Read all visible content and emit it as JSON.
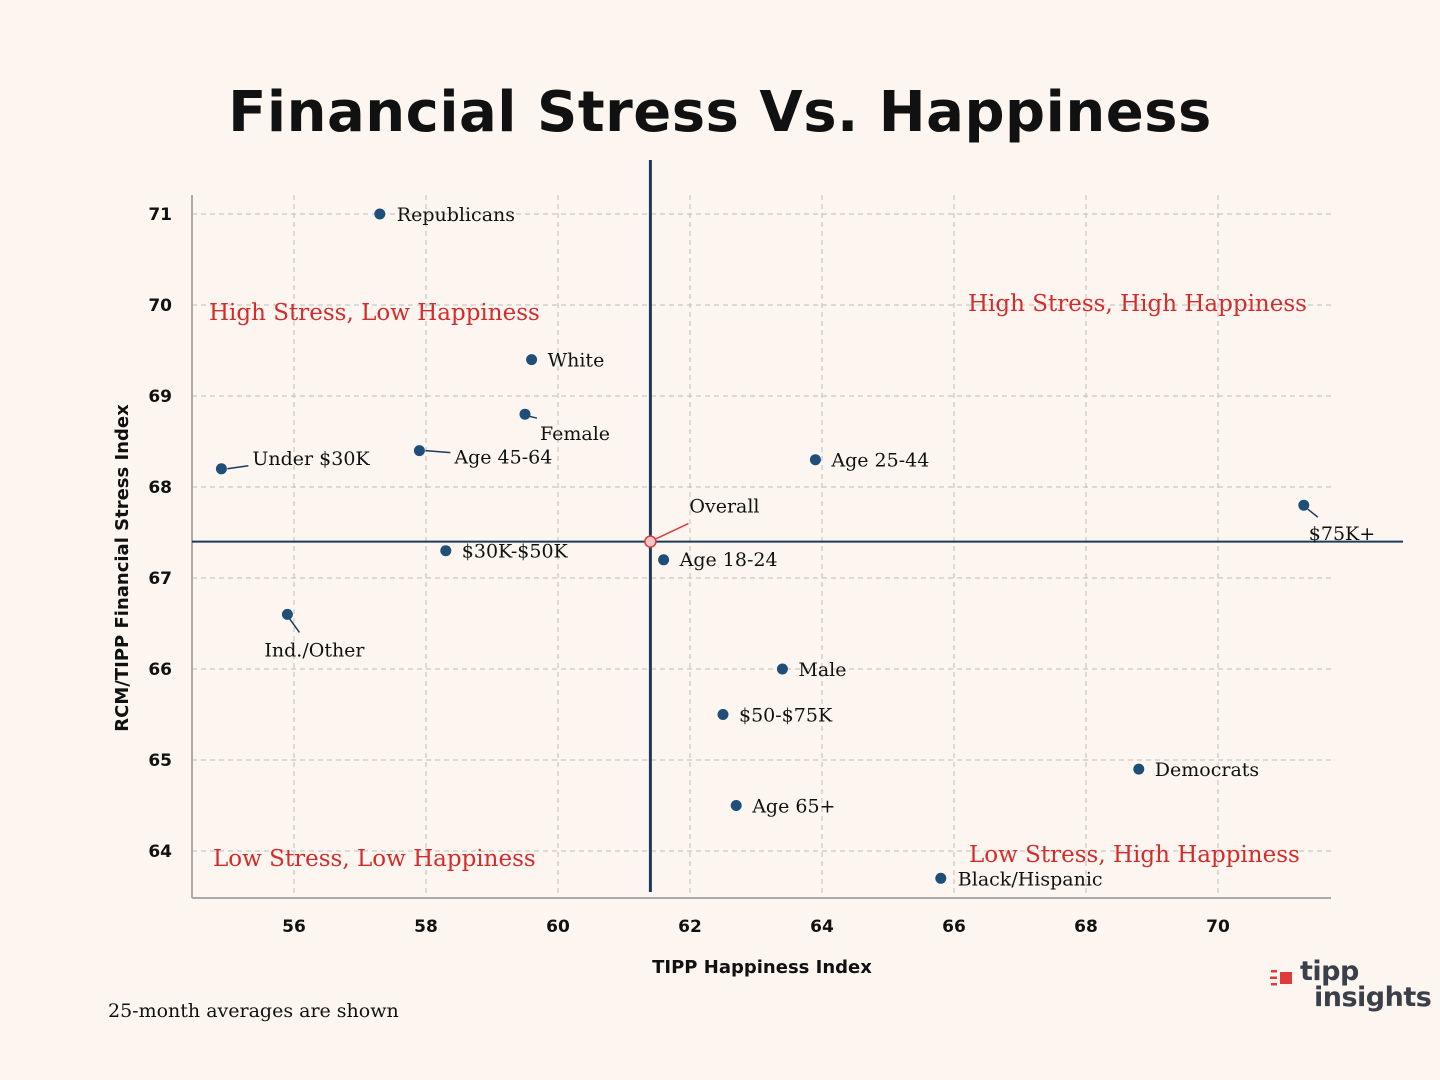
{
  "chart_data": {
    "type": "scatter",
    "title": "Financial Stress Vs. Happiness",
    "xlabel": "TIPP Happiness Index",
    "ylabel": "RCM/TIPP Financial Stress Index",
    "xlim": [
      54.5,
      71.7
    ],
    "ylim": [
      63.5,
      71.2
    ],
    "xticks": [
      56,
      58,
      60,
      62,
      64,
      66,
      68,
      70
    ],
    "yticks": [
      64,
      65,
      66,
      67,
      68,
      69,
      70,
      71
    ],
    "grid": true,
    "reference_lines": {
      "x": 61.4,
      "y": 67.4
    },
    "point_color": "#1f4e79",
    "highlight_color": "#e03a3a",
    "quadrant_label_color": "#d42b2b",
    "points": [
      {
        "label": "Republicans",
        "x": 57.3,
        "y": 71.0
      },
      {
        "label": "White",
        "x": 59.6,
        "y": 69.4
      },
      {
        "label": "Female",
        "x": 59.5,
        "y": 68.8
      },
      {
        "label": "Under $30K",
        "x": 54.9,
        "y": 68.2
      },
      {
        "label": "Age 45-64",
        "x": 57.9,
        "y": 68.4
      },
      {
        "label": "Age 25-44",
        "x": 63.9,
        "y": 68.3
      },
      {
        "label": "$75K+",
        "x": 71.3,
        "y": 67.8
      },
      {
        "label": "Overall",
        "x": 61.4,
        "y": 67.4,
        "highlight": true
      },
      {
        "label": "$30K-$50K",
        "x": 58.3,
        "y": 67.3
      },
      {
        "label": "Age 18-24",
        "x": 61.6,
        "y": 67.2
      },
      {
        "label": "Ind./Other",
        "x": 55.9,
        "y": 66.6
      },
      {
        "label": "Male",
        "x": 63.4,
        "y": 66.0
      },
      {
        "label": "$50-$75K",
        "x": 62.5,
        "y": 65.5
      },
      {
        "label": "Democrats",
        "x": 68.8,
        "y": 64.9
      },
      {
        "label": "Age 65+",
        "x": 62.7,
        "y": 64.5
      },
      {
        "label": "Black/Hispanic",
        "x": 65.8,
        "y": 63.7
      }
    ],
    "quadrant_labels": {
      "top_left": "High Stress, Low Happiness",
      "top_right": "High Stress, High Happiness",
      "bottom_left": "Low Stress, Low Happiness",
      "bottom_right": "Low Stress, High Happiness"
    }
  },
  "footnote": "25-month averages are shown",
  "logo": {
    "line1": "tipp",
    "line2": "insights"
  }
}
